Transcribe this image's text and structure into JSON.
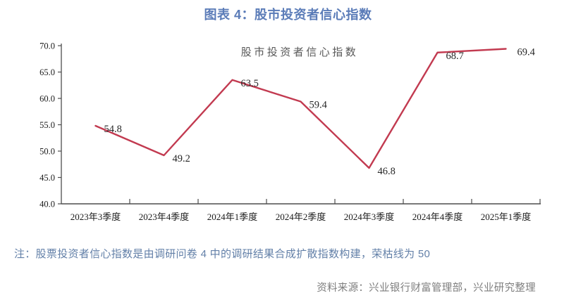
{
  "page": {
    "title": "图表 4：股市投资者信心指数",
    "note": "注：股票投资者信心指数是由调研问卷 4 中的调研结果合成扩散指数构建，荣枯线为 50",
    "source": "资料来源：兴业银行财富管理部，兴业研究整理"
  },
  "colors": {
    "title": "#5b7cb8",
    "note": "#6380a8",
    "source": "#7e7e7e",
    "line": "#c23a50",
    "axis": "#4d4d4d",
    "tick_label": "#1a1a1a",
    "data_label": "#262626",
    "legend": "#595959",
    "background": "#ffffff"
  },
  "chart_data": {
    "type": "line",
    "title": "图表 4：股市投资者信心指数",
    "legend": "股市投资者信心指数",
    "legend_position": "top-center",
    "categories": [
      "2023年3季度",
      "2023年4季度",
      "2024年1季度",
      "2024年2季度",
      "2024年3季度",
      "2024年4季度",
      "2025年1季度"
    ],
    "values": [
      54.8,
      49.2,
      63.5,
      59.4,
      46.8,
      68.7,
      69.4
    ],
    "data_labels": [
      "54.8",
      "49.2",
      "63.5",
      "59.4",
      "46.8",
      "68.7",
      "69.4"
    ],
    "ylim": [
      40.0,
      70.0
    ],
    "ytick_step": 5.0,
    "yticks": [
      "70.0",
      "65.0",
      "60.0",
      "55.0",
      "50.0",
      "45.0",
      "40.0"
    ],
    "xlabel": "",
    "ylabel": "",
    "grid": false
  }
}
